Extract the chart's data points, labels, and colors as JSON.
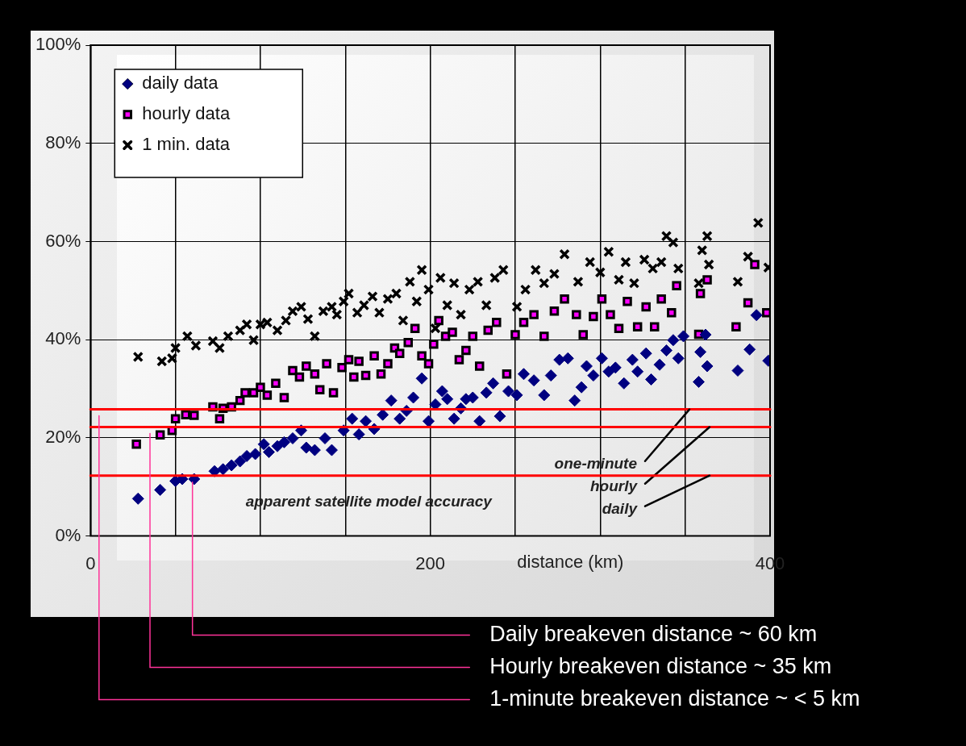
{
  "chart_data": {
    "type": "scatter",
    "xlabel": "distance (km)",
    "legend": "top left",
    "grid": "xy",
    "xlim": [
      0,
      400
    ],
    "xticks": [
      {
        "value": 0,
        "label": "0"
      },
      {
        "value": 50,
        "label": null
      },
      {
        "value": 100,
        "label": null
      },
      {
        "value": 150,
        "label": null
      },
      {
        "value": 200,
        "label": "200"
      },
      {
        "value": 250,
        "label": null
      },
      {
        "value": 300,
        "label": null
      },
      {
        "value": 350,
        "label": null
      },
      {
        "value": 400,
        "label": "400"
      }
    ],
    "ylim": [
      0,
      100
    ],
    "yticks": [
      {
        "value": 0,
        "label": "0%"
      },
      {
        "value": 20,
        "label": "20%"
      },
      {
        "value": 40,
        "label": "40%"
      },
      {
        "value": 60,
        "label": "60%"
      },
      {
        "value": 80,
        "label": "80%"
      },
      {
        "value": 100,
        "label": "100%"
      }
    ],
    "series": [
      {
        "name": "daily data",
        "color": "#000080",
        "marker": "diamond",
        "x": [
          28,
          41,
          50,
          54,
          61,
          73,
          78,
          83,
          88,
          92,
          97,
          102,
          105,
          110,
          114,
          119,
          124,
          127,
          132,
          138,
          142,
          149,
          154,
          158,
          162,
          167,
          172,
          177,
          182,
          186,
          190,
          195,
          199,
          203,
          207,
          210,
          214,
          218,
          221,
          225,
          229,
          233,
          237,
          241,
          246,
          251,
          255,
          261,
          267,
          271,
          276,
          281,
          285,
          289,
          292,
          296,
          301,
          305,
          309,
          314,
          319,
          322,
          327,
          330,
          335,
          339,
          343,
          346,
          349,
          358,
          359,
          362,
          363,
          381,
          388,
          392,
          399
        ],
        "values": [
          7.6,
          9.4,
          11.2,
          11.6,
          11.6,
          13.2,
          13.6,
          14.4,
          15.2,
          16.3,
          16.7,
          18.7,
          17.1,
          18.3,
          19.1,
          19.9,
          21.5,
          18,
          17.5,
          19.9,
          17.5,
          21.5,
          23.9,
          20.7,
          23.4,
          21.8,
          24.7,
          27.6,
          23.9,
          25.5,
          28.2,
          32.1,
          23.4,
          26.8,
          29.5,
          27.9,
          23.9,
          26,
          27.9,
          28.2,
          23.4,
          29.2,
          31.1,
          24.4,
          29.5,
          28.7,
          33,
          31.7,
          28.7,
          32.7,
          35.9,
          36.2,
          27.6,
          30.3,
          34.6,
          32.7,
          36.2,
          33.5,
          34.3,
          31.1,
          35.9,
          33.5,
          37.2,
          31.9,
          34.9,
          37.8,
          39.9,
          36.2,
          40.7,
          31.4,
          37.5,
          41,
          34.6,
          33.7,
          38,
          45,
          35.7
        ]
      },
      {
        "name": "hourly data",
        "color": "#ff00ff",
        "marker": "square",
        "x": [
          27,
          41,
          48,
          50,
          56,
          61,
          72,
          76,
          78,
          83,
          88,
          91,
          96,
          100,
          104,
          109,
          114,
          119,
          123,
          127,
          132,
          135,
          139,
          143,
          148,
          152,
          155,
          158,
          162,
          167,
          171,
          175,
          179,
          182,
          187,
          191,
          195,
          199,
          202,
          205,
          209,
          213,
          217,
          221,
          225,
          229,
          234,
          239,
          245,
          250,
          255,
          261,
          267,
          273,
          279,
          286,
          290,
          296,
          301,
          306,
          311,
          316,
          322,
          327,
          332,
          336,
          342,
          345,
          358,
          359,
          363,
          380,
          387,
          391,
          398
        ],
        "values": [
          18.7,
          20.6,
          21.5,
          23.9,
          24.7,
          24.6,
          26.3,
          23.9,
          26,
          26.3,
          27.6,
          29.2,
          29.2,
          30.3,
          28.7,
          31.1,
          28.2,
          33.7,
          32.4,
          34.6,
          33,
          29.8,
          35.1,
          29.2,
          34.3,
          35.9,
          32.4,
          35.6,
          32.7,
          36.7,
          33,
          35.1,
          38.3,
          37.2,
          39.4,
          42.3,
          36.7,
          35.1,
          39.1,
          43.9,
          40.7,
          41.5,
          35.9,
          37.8,
          40.7,
          34.6,
          41.9,
          43.5,
          33,
          41,
          43.5,
          45.1,
          40.7,
          45.8,
          48.3,
          45.1,
          41,
          44.7,
          48.3,
          45.1,
          42.3,
          47.8,
          42.6,
          46.7,
          42.6,
          48.3,
          45.5,
          51,
          41.1,
          49.4,
          52.2,
          42.6,
          47.5,
          55.3,
          45.5
        ]
      },
      {
        "name": "1 min. data",
        "color": "#000000",
        "marker": "cross",
        "x": [
          28,
          42,
          48,
          50,
          57,
          62,
          72,
          76,
          81,
          88,
          92,
          96,
          100,
          104,
          110,
          115,
          119,
          124,
          128,
          132,
          137,
          142,
          145,
          149,
          152,
          157,
          161,
          166,
          170,
          175,
          180,
          184,
          188,
          192,
          195,
          199,
          203,
          206,
          210,
          214,
          218,
          223,
          228,
          233,
          238,
          243,
          251,
          256,
          262,
          267,
          273,
          279,
          287,
          294,
          300,
          305,
          311,
          315,
          320,
          326,
          331,
          336,
          339,
          343,
          346,
          358,
          360,
          363,
          364,
          381,
          387,
          393,
          399
        ],
        "values": [
          36.5,
          35.6,
          36.2,
          38.3,
          40.7,
          38.8,
          39.7,
          38.3,
          40.7,
          41.9,
          43.1,
          39.9,
          43.1,
          43.5,
          41.9,
          43.9,
          45.8,
          46.7,
          44.2,
          40.7,
          45.8,
          46.7,
          45.1,
          47.8,
          49.4,
          45.5,
          47,
          48.8,
          45.5,
          48.3,
          49.4,
          43.9,
          51.8,
          47.8,
          54.2,
          50.2,
          42.3,
          52.6,
          47,
          51.5,
          45.1,
          50.2,
          51.8,
          47,
          52.6,
          54.2,
          46.7,
          50.2,
          54.2,
          51.5,
          53.4,
          57.4,
          51.8,
          55.8,
          53.7,
          57.9,
          52.2,
          55.8,
          51.5,
          56.3,
          54.5,
          55.8,
          61.1,
          59.8,
          54.5,
          51.5,
          58.2,
          61.1,
          55.3,
          51.8,
          56.9,
          63.8,
          54.7
        ]
      }
    ],
    "ref_lines": [
      {
        "axis": "y",
        "value": 25.8,
        "label": "one-minute",
        "color": "#ff0000"
      },
      {
        "axis": "y",
        "value": 22.2,
        "label": "hourly",
        "color": "#ff0000"
      },
      {
        "axis": "y",
        "value": 12.3,
        "label": "daily",
        "color": "#ff0000"
      },
      {
        "axis": "x",
        "value": 60,
        "label": "Daily breakeven distance ~ 60 km",
        "color": "#ff3399"
      },
      {
        "axis": "x",
        "value": 35,
        "label": "Hourly breakeven distance ~ 35 km",
        "color": "#ff3399"
      },
      {
        "axis": "x",
        "value": 5,
        "label": "1-minute breakeven distance ~ < 5 km",
        "color": "#ff3399"
      }
    ],
    "annotations": [
      "apparent satellite model accuracy"
    ]
  }
}
